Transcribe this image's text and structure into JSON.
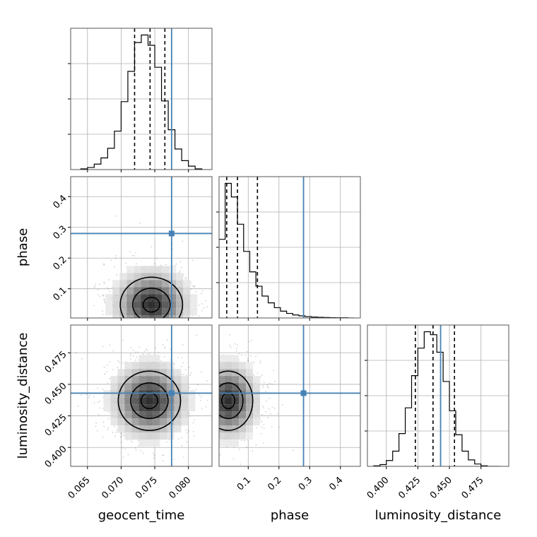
{
  "chart_data": {
    "type": "corner",
    "parameters": [
      "geocent_time",
      "phase",
      "luminosity_distance"
    ],
    "labels": {
      "x_geocent_time": "geocent_time",
      "x_phase": "phase",
      "x_luminosity_distance": "luminosity_distance",
      "y_phase": "phase",
      "y_luminosity_distance": "luminosity_distance"
    },
    "ticks": {
      "geocent_time": [
        "0.065",
        "0.070",
        "0.075",
        "0.080"
      ],
      "phase": [
        "0.1",
        "0.2",
        "0.3",
        "0.4"
      ],
      "luminosity_distance": [
        "0.400",
        "0.425",
        "0.450",
        "0.475"
      ]
    },
    "ranges": {
      "geocent_time": [
        0.0625,
        0.0835
      ],
      "phase": [
        0.005,
        0.465
      ],
      "luminosity_distance": [
        0.385,
        0.497
      ]
    },
    "injection_values": {
      "geocent_time": 0.0775,
      "phase": 0.28,
      "luminosity_distance": 0.443
    },
    "quantiles": {
      "geocent_time": [
        0.072,
        0.0743,
        0.0765
      ],
      "phase": [
        0.03,
        0.065,
        0.13
      ],
      "luminosity_distance": [
        0.423,
        0.437,
        0.454
      ]
    },
    "histograms": {
      "geocent_time": {
        "edges": [
          0.064,
          0.065,
          0.066,
          0.067,
          0.068,
          0.069,
          0.07,
          0.071,
          0.072,
          0.073,
          0.074,
          0.075,
          0.076,
          0.077,
          0.078,
          0.079,
          0.08,
          0.081,
          0.082
        ],
        "counts": [
          1,
          3,
          8,
          17,
          31,
          56,
          99,
          143,
          185,
          196,
          181,
          149,
          100,
          58,
          30,
          13,
          5,
          1
        ]
      },
      "phase": {
        "edges": [
          0.005,
          0.025,
          0.045,
          0.065,
          0.085,
          0.105,
          0.125,
          0.145,
          0.165,
          0.185,
          0.205,
          0.225,
          0.245,
          0.265,
          0.285,
          0.305,
          0.325,
          0.345,
          0.365,
          0.385,
          0.405,
          0.425,
          0.445
        ],
        "counts": [
          520,
          890,
          800,
          620,
          440,
          305,
          210,
          145,
          100,
          68,
          45,
          30,
          20,
          14,
          9,
          6,
          4,
          3,
          2,
          1,
          1,
          0
        ]
      },
      "luminosity_distance": {
        "edges": [
          0.39,
          0.395,
          0.4,
          0.405,
          0.41,
          0.415,
          0.42,
          0.425,
          0.43,
          0.435,
          0.44,
          0.445,
          0.45,
          0.455,
          0.46,
          0.465,
          0.47,
          0.475,
          0.48,
          0.485,
          0.49
        ],
        "counts": [
          1,
          3,
          10,
          26,
          56,
          100,
          155,
          202,
          230,
          225,
          195,
          145,
          95,
          54,
          26,
          11,
          4,
          1,
          0,
          0
        ]
      }
    },
    "peaks_2d": {
      "phase_vs_geocent_time": [
        0.0745,
        0.048
      ],
      "luminosity_distance_vs_geocent_time": [
        0.0742,
        0.437
      ],
      "luminosity_distance_vs_phase": [
        0.035,
        0.437
      ]
    },
    "grid": true
  }
}
